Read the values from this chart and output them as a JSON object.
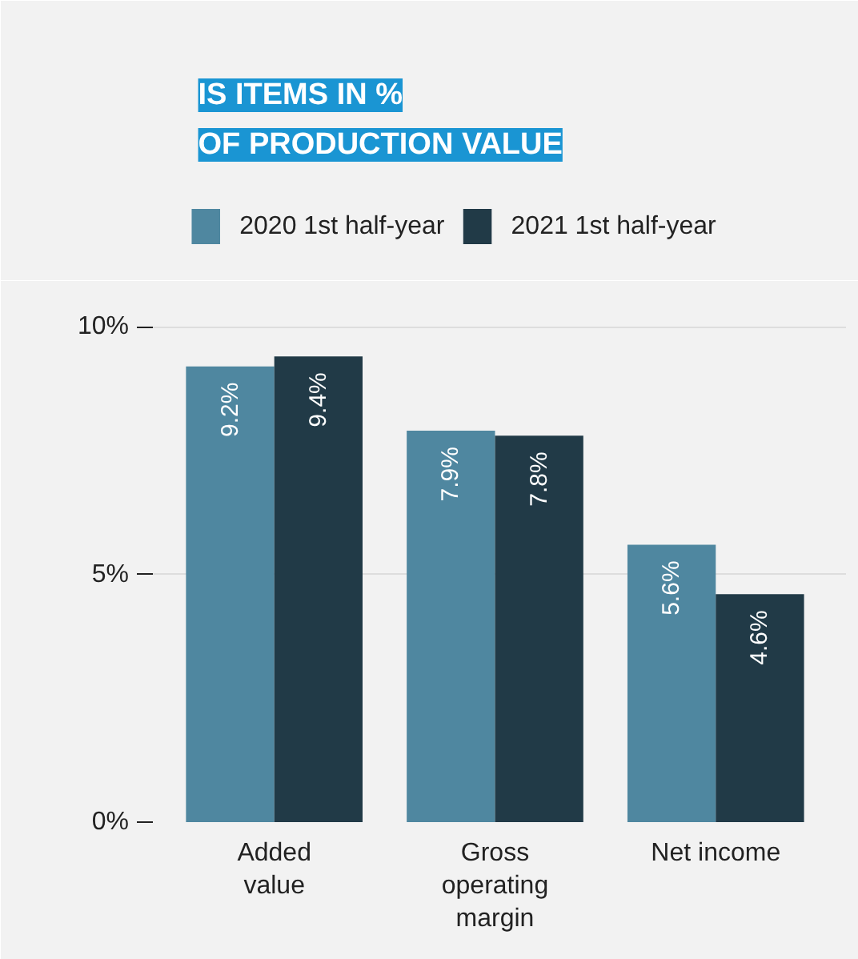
{
  "chart_data": {
    "type": "bar",
    "title": "IS ITEMS IN %\nOF PRODUCTION VALUE",
    "categories": [
      "Added value",
      "Gross operating margin",
      "Net income"
    ],
    "series": [
      {
        "name": "2020 1st half-year",
        "color": "#4f87a0",
        "values": [
          9.2,
          7.9,
          5.6
        ],
        "value_labels": [
          "9.2%",
          "7.9%",
          "5.6%"
        ]
      },
      {
        "name": "2021 1st half-year",
        "color": "#213a47",
        "values": [
          9.4,
          7.8,
          4.6
        ],
        "value_labels": [
          "9.4%",
          "7.8%",
          "4.6%"
        ]
      }
    ],
    "ylim": [
      0,
      10.6
    ],
    "yticks": [
      {
        "value": 0,
        "label": "0%"
      },
      {
        "value": 5,
        "label": "5%"
      },
      {
        "value": 10,
        "label": "10%"
      }
    ],
    "grid": "y",
    "legend": "top left"
  }
}
